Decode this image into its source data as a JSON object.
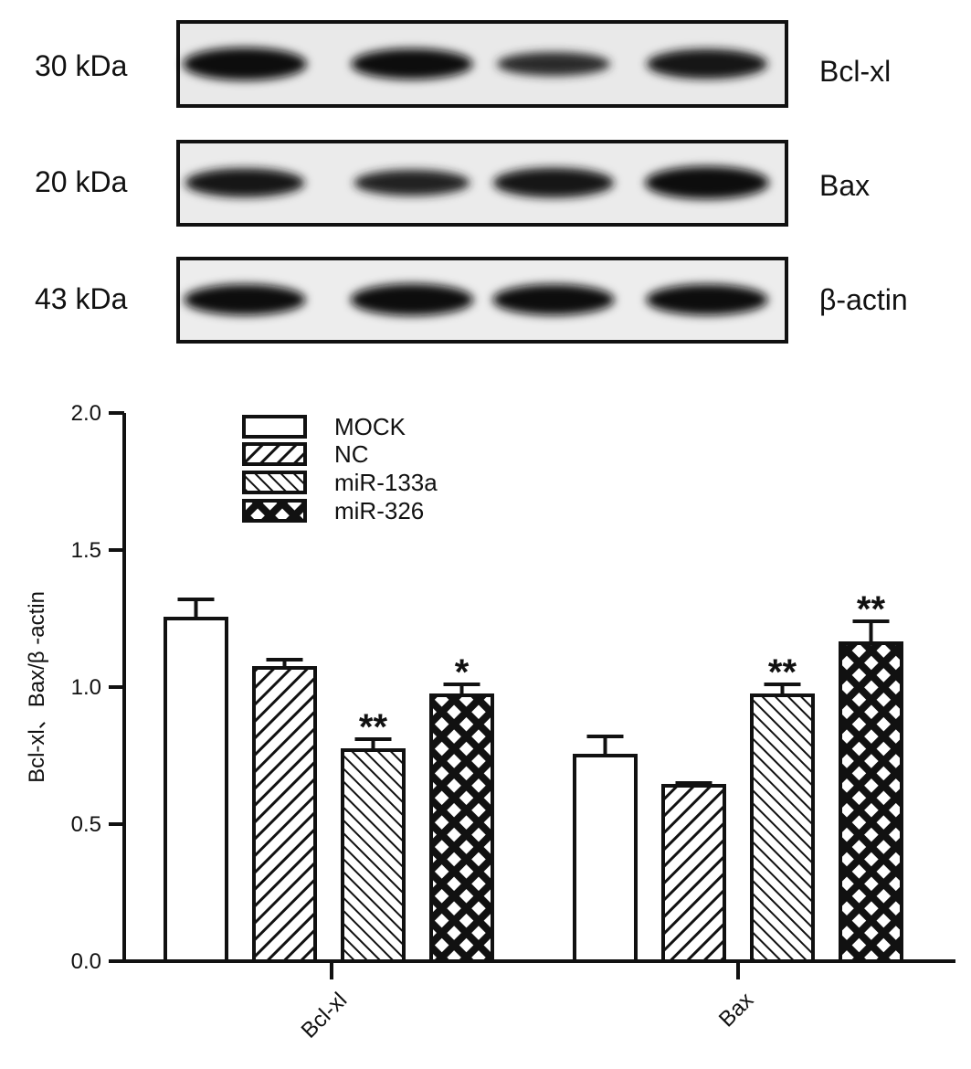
{
  "blot": {
    "rows": [
      {
        "mw": "30 kDa",
        "protein": "Bcl-xl",
        "intensities": [
          1.0,
          0.9,
          0.55,
          0.85
        ]
      },
      {
        "mw": "20 kDa",
        "protein": "Bax",
        "intensities": [
          0.8,
          0.65,
          0.85,
          1.0
        ]
      },
      {
        "mw": "43 kDa",
        "protein": "β-actin",
        "intensities": [
          0.9,
          0.95,
          0.9,
          0.9
        ]
      }
    ]
  },
  "chart_data": {
    "type": "bar",
    "title": "",
    "xlabel": "",
    "ylabel": "Bcl-xl、Bax/β -actin",
    "ylim": [
      0,
      2.0
    ],
    "yticks": [
      "0.0",
      "0.5",
      "1.0",
      "1.5",
      "2.0"
    ],
    "categories": [
      "Bcl-xl",
      "Bax"
    ],
    "legend_position": "top-left",
    "grid": false,
    "series": [
      {
        "name": "MOCK",
        "pattern": "none",
        "values": [
          1.25,
          0.75
        ],
        "errors": [
          0.07,
          0.07
        ],
        "significance": [
          "",
          ""
        ]
      },
      {
        "name": "NC",
        "pattern": "diagonal",
        "values": [
          1.07,
          0.64
        ],
        "errors": [
          0.03,
          0.01
        ],
        "significance": [
          "",
          ""
        ]
      },
      {
        "name": "miR-133a",
        "pattern": "back-diagonal",
        "values": [
          0.77,
          0.97
        ],
        "errors": [
          0.04,
          0.04
        ],
        "significance": [
          "**",
          "**"
        ]
      },
      {
        "name": "miR-326",
        "pattern": "crosshatch",
        "values": [
          0.97,
          1.16
        ],
        "errors": [
          0.04,
          0.08
        ],
        "significance": [
          "*",
          "**"
        ]
      }
    ]
  }
}
